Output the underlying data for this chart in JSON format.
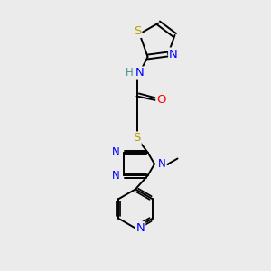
{
  "background_color": "#ebebeb",
  "bond_color": "#000000",
  "atom_colors": {
    "S": "#b8a000",
    "N": "#0000ff",
    "O": "#ff0000",
    "C": "#000000",
    "H": "#4a9090"
  },
  "font_size": 8.5,
  "line_width": 1.4
}
